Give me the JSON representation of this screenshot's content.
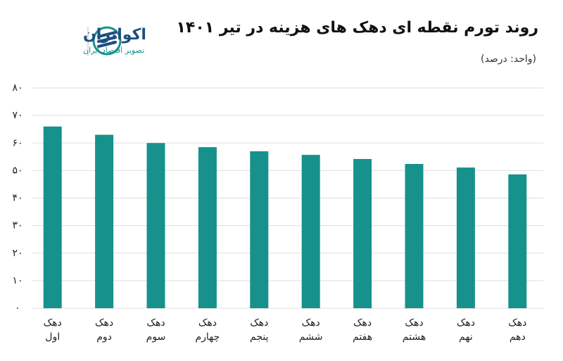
{
  "brand": {
    "name": "اکوایران",
    "tagline": "تصویر اقتصاد ایران"
  },
  "chart_data": {
    "type": "bar",
    "title": "روند تورم نقطه ای دهک های هزینه در تیر ۱۴۰۱",
    "subtitle": "(واحد: درصد)",
    "categories": [
      "دهک اول",
      "دهک دوم",
      "دهک سوم",
      "دهک چهارم",
      "دهک پنجم",
      "دهک ششم",
      "دهک هفتم",
      "دهک هشتم",
      "دهک نهم",
      "دهک دهم"
    ],
    "values": [
      66,
      63,
      60,
      58.5,
      57,
      55.7,
      54.2,
      52.4,
      51.1,
      48.6
    ],
    "color": "#17918c",
    "ylim": [
      0,
      80
    ],
    "yticks": [
      {
        "value": 0,
        "label": "۰"
      },
      {
        "value": 10,
        "label": "۱۰"
      },
      {
        "value": 20,
        "label": "۲۰"
      },
      {
        "value": 30,
        "label": "۳۰"
      },
      {
        "value": 40,
        "label": "۴۰"
      },
      {
        "value": 50,
        "label": "۵۰"
      },
      {
        "value": 60,
        "label": "۶۰"
      },
      {
        "value": 70,
        "label": "۷۰"
      },
      {
        "value": 80,
        "label": "۸۰"
      }
    ],
    "grid": true
  }
}
